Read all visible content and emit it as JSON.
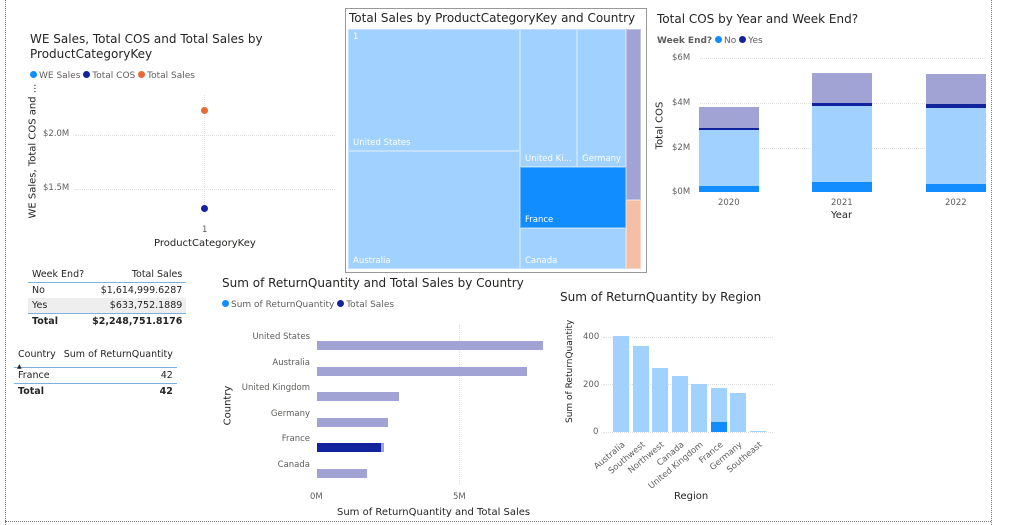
{
  "colors": {
    "no": "#118dff",
    "yes": "#12239e",
    "orange": "#e66c37",
    "light": "#a0d1ff",
    "faded": "#a1a3d4"
  },
  "scatter": {
    "title_line1": "WE Sales, Total COS and Total Sales by",
    "title_line2": "ProductCategoryKey",
    "legend": [
      "WE Sales",
      "Total COS",
      "Total Sales"
    ],
    "ylabel": "WE Sales, Total COS and ...",
    "xlabel": "ProductCategoryKey",
    "yticks": [
      "$2.0M",
      "$1.5M"
    ],
    "xtick": "1"
  },
  "treemap": {
    "title": "Total Sales by ProductCategoryKey and Country",
    "category": "1",
    "tiles": [
      "United States",
      "Australia",
      "United Ki...",
      "Germany",
      "France",
      "Canada"
    ]
  },
  "cos": {
    "title": "Total COS by Year and Week End?",
    "legend_title": "Week End?",
    "legend": [
      "No",
      "Yes"
    ],
    "ylabel": "Total COS",
    "xlabel": "Year",
    "yticks": [
      "$6M",
      "$4M",
      "$2M",
      "$0M"
    ]
  },
  "week_table": {
    "headers": [
      "Week End?",
      "Total Sales"
    ],
    "rows": [
      [
        "No",
        "$1,614,999.6287"
      ],
      [
        "Yes",
        "$633,752.1889"
      ]
    ],
    "total": [
      "Total",
      "$2,248,751.8176"
    ]
  },
  "country_table": {
    "headers": [
      "Country",
      "Sum of ReturnQuantity"
    ],
    "rows": [
      [
        "France",
        "42"
      ]
    ],
    "total": [
      "Total",
      "42"
    ]
  },
  "bars": {
    "title": "Sum of ReturnQuantity and Total Sales by Country",
    "legend": [
      "Sum of ReturnQuantity",
      "Total Sales"
    ],
    "ylabel": "Country",
    "xlabel": "Sum of ReturnQuantity and Total Sales",
    "xticks": [
      "0M",
      "5M"
    ]
  },
  "region": {
    "title": "Sum of ReturnQuantity by Region",
    "ylabel": "Sum of ReturnQuantity",
    "xlabel": "Region",
    "yticks": [
      "400",
      "200",
      "0"
    ]
  },
  "chart_data": [
    {
      "type": "scatter",
      "title": "WE Sales, Total COS and Total Sales by ProductCategoryKey",
      "categories": [
        "1"
      ],
      "series": [
        {
          "name": "Total Sales",
          "values": [
            2248751.82
          ]
        },
        {
          "name": "Total COS",
          "values": [
            1320000
          ]
        }
      ],
      "ylim": [
        1300000,
        2300000
      ],
      "grid": true
    },
    {
      "type": "bar",
      "stacked": true,
      "title": "Total COS by Year and Week End?",
      "categories": [
        "2020",
        "2021",
        "2022"
      ],
      "series": [
        {
          "name": "No",
          "highlighted": [
            0.25,
            0.45,
            0.38
          ],
          "values": [
            2.8,
            3.85,
            3.78
          ]
        },
        {
          "name": "Yes",
          "highlighted": [
            0.08,
            0.12,
            0.15
          ],
          "values": [
            1.0,
            1.49,
            1.52
          ]
        }
      ],
      "unit": "$M",
      "ylim": [
        0,
        6
      ]
    },
    {
      "type": "bar",
      "orientation": "horizontal",
      "title": "Sum of ReturnQuantity and Total Sales by Country",
      "categories": [
        "United States",
        "Australia",
        "United Kingdom",
        "Germany",
        "France",
        "Canada"
      ],
      "series": [
        {
          "name": "Total Sales",
          "values": [
            7.96,
            7.4,
            2.9,
            2.5,
            2.35,
            1.76
          ],
          "highlighted": [
            0,
            0,
            0,
            0,
            2.25,
            0
          ]
        }
      ],
      "unit": "M",
      "xlim": [
        0,
        8.5
      ]
    },
    {
      "type": "bar",
      "title": "Sum of ReturnQuantity by Region",
      "categories": [
        "Australia",
        "Southwest",
        "Northwest",
        "Canada",
        "United Kingdom",
        "France",
        "Germany",
        "Southeast"
      ],
      "values": [
        404,
        362,
        270,
        236,
        202,
        185,
        164,
        3
      ],
      "highlighted": [
        0,
        0,
        0,
        0,
        0,
        42,
        0,
        0
      ],
      "ylim": [
        0,
        450
      ]
    }
  ]
}
